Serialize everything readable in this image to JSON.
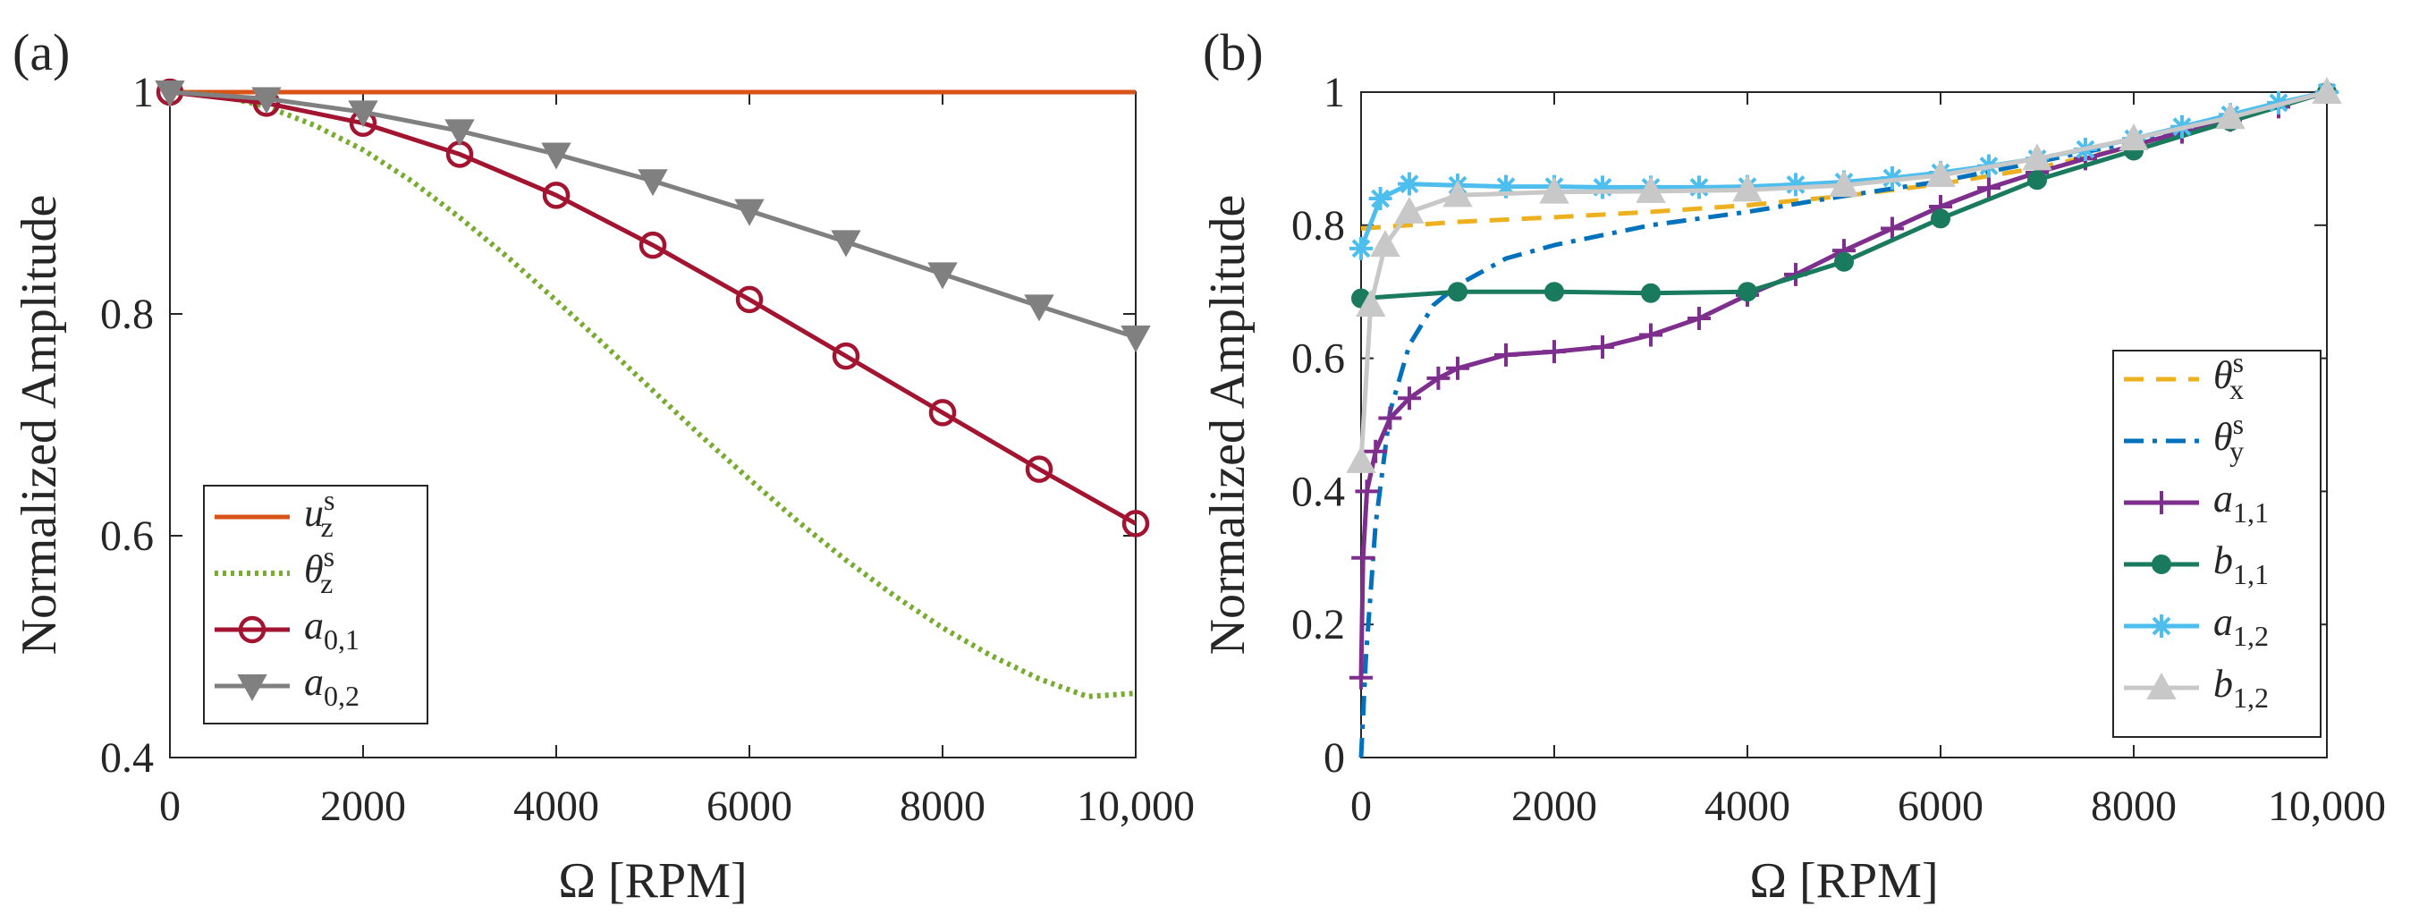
{
  "figure": {
    "panels": [
      {
        "id": "a",
        "label": "(a)"
      },
      {
        "id": "b",
        "label": "(b)"
      }
    ]
  },
  "chart_data": [
    {
      "type": "line",
      "panel_label": "(a)",
      "xlabel": "Ω [RPM]",
      "ylabel": "Normalized Amplitude",
      "xlim": [
        0,
        10000
      ],
      "ylim": [
        0.4,
        1.0
      ],
      "xticks": [
        0,
        2000,
        4000,
        6000,
        8000,
        10000
      ],
      "xtick_labels": [
        "0",
        "2000",
        "4000",
        "6000",
        "8000",
        "10,000"
      ],
      "yticks": [
        0.4,
        0.6,
        0.8,
        1.0
      ],
      "ytick_labels": [
        "0.4",
        "0.6",
        "0.8",
        "1"
      ],
      "grid": false,
      "legend_position": "bottom-left",
      "series": [
        {
          "name": "u_z^s",
          "label_main": "u",
          "label_sub": "z",
          "label_sup": "s",
          "color": "#d95319",
          "style": "solid",
          "marker": "none",
          "x": [
            0,
            10000
          ],
          "y": [
            1.0,
            1.0
          ]
        },
        {
          "name": "θ_z^s",
          "label_main": "θ",
          "label_sub": "z",
          "label_sup": "s",
          "color": "#77ac30",
          "style": "dotted",
          "marker": "none",
          "x": [
            0,
            500,
            1000,
            1500,
            2000,
            2500,
            3000,
            3500,
            4000,
            4500,
            5000,
            5500,
            6000,
            6500,
            7000,
            7500,
            8000,
            8500,
            9000,
            9500,
            10000
          ],
          "y": [
            1.0,
            0.997,
            0.987,
            0.97,
            0.948,
            0.92,
            0.887,
            0.851,
            0.812,
            0.772,
            0.731,
            0.69,
            0.651,
            0.613,
            0.578,
            0.546,
            0.517,
            0.492,
            0.471,
            0.455,
            0.458
          ]
        },
        {
          "name": "a_0,1",
          "label_main": "a",
          "label_sub": "0,1",
          "label_sup": "",
          "color": "#a2142f",
          "style": "solid",
          "marker": "circle",
          "x": [
            0,
            1000,
            2000,
            3000,
            4000,
            5000,
            6000,
            7000,
            8000,
            9000,
            10000
          ],
          "y": [
            1.0,
            0.99,
            0.972,
            0.944,
            0.907,
            0.862,
            0.813,
            0.762,
            0.711,
            0.66,
            0.611
          ]
        },
        {
          "name": "a_0,2",
          "label_main": "a",
          "label_sub": "0,2",
          "label_sup": "",
          "color": "#808080",
          "style": "solid",
          "marker": "triangle-down",
          "x": [
            0,
            1000,
            2000,
            3000,
            4000,
            5000,
            6000,
            7000,
            8000,
            9000,
            10000
          ],
          "y": [
            1.0,
            0.994,
            0.982,
            0.965,
            0.944,
            0.92,
            0.893,
            0.865,
            0.836,
            0.807,
            0.779
          ]
        }
      ]
    },
    {
      "type": "line",
      "panel_label": "(b)",
      "xlabel": "Ω [RPM]",
      "ylabel": "Normalized Amplitude",
      "xlim": [
        0,
        10000
      ],
      "ylim": [
        0,
        1.0
      ],
      "xticks": [
        0,
        2000,
        4000,
        6000,
        8000,
        10000
      ],
      "xtick_labels": [
        "0",
        "2000",
        "4000",
        "6000",
        "8000",
        "10,000"
      ],
      "yticks": [
        0,
        0.2,
        0.4,
        0.6,
        0.8,
        1.0
      ],
      "ytick_labels": [
        "0",
        "0.2",
        "0.4",
        "0.6",
        "0.8",
        "1"
      ],
      "grid": false,
      "legend_position": "bottom-right",
      "series": [
        {
          "name": "θ_x^s",
          "label_main": "θ",
          "label_sub": "x",
          "label_sup": "s",
          "color": "#edb120",
          "style": "dashed",
          "marker": "none",
          "x": [
            0,
            500,
            1000,
            2000,
            3000,
            4000,
            5000,
            6000,
            7000,
            8000,
            9000,
            10000
          ],
          "y": [
            0.795,
            0.8,
            0.805,
            0.812,
            0.82,
            0.83,
            0.844,
            0.862,
            0.886,
            0.918,
            0.957,
            1.0
          ]
        },
        {
          "name": "θ_y^s",
          "label_main": "θ",
          "label_sub": "y",
          "label_sup": "s",
          "color": "#0072bd",
          "style": "dashdot",
          "marker": "none",
          "x": [
            0,
            50,
            150,
            300,
            500,
            750,
            1000,
            1500,
            2000,
            3000,
            4000,
            5000,
            6000,
            7000,
            8000,
            9000,
            10000
          ],
          "y": [
            0.0,
            0.15,
            0.35,
            0.52,
            0.62,
            0.68,
            0.71,
            0.75,
            0.77,
            0.8,
            0.82,
            0.844,
            0.866,
            0.895,
            0.925,
            0.96,
            1.0
          ]
        },
        {
          "name": "a_1,1",
          "label_main": "a",
          "label_sub": "1,1",
          "label_sup": "",
          "color": "#7e2f8e",
          "style": "solid",
          "marker": "plus",
          "x": [
            0,
            20,
            60,
            150,
            300,
            500,
            800,
            1000,
            1500,
            2000,
            2500,
            3000,
            3500,
            4000,
            4500,
            5000,
            5500,
            6000,
            6500,
            7000,
            7500,
            8000,
            8500,
            9000,
            9500,
            10000
          ],
          "y": [
            0.12,
            0.3,
            0.4,
            0.46,
            0.51,
            0.54,
            0.57,
            0.585,
            0.605,
            0.61,
            0.617,
            0.635,
            0.66,
            0.695,
            0.726,
            0.762,
            0.795,
            0.828,
            0.856,
            0.879,
            0.9,
            0.92,
            0.94,
            0.958,
            0.978,
            1.0
          ]
        },
        {
          "name": "b_1,1",
          "label_main": "b",
          "label_sub": "1,1",
          "label_sup": "",
          "color": "#1a7a5e",
          "style": "solid",
          "marker": "dot",
          "x": [
            0,
            1000,
            2000,
            3000,
            4000,
            5000,
            6000,
            7000,
            8000,
            9000,
            10000
          ],
          "y": [
            0.69,
            0.7,
            0.7,
            0.698,
            0.7,
            0.745,
            0.81,
            0.868,
            0.912,
            0.956,
            1.0
          ]
        },
        {
          "name": "a_1,2",
          "label_main": "a",
          "label_sub": "1,2",
          "label_sup": "",
          "color": "#4dbeee",
          "style": "solid",
          "marker": "star",
          "x": [
            0,
            200,
            500,
            1000,
            1500,
            2000,
            2500,
            3000,
            3500,
            4000,
            4500,
            5000,
            5500,
            6000,
            6500,
            7000,
            7500,
            8000,
            8500,
            9000,
            9500,
            10000
          ],
          "y": [
            0.765,
            0.84,
            0.862,
            0.86,
            0.858,
            0.858,
            0.857,
            0.857,
            0.857,
            0.858,
            0.861,
            0.865,
            0.871,
            0.879,
            0.889,
            0.9,
            0.914,
            0.93,
            0.948,
            0.966,
            0.984,
            1.0
          ]
        },
        {
          "name": "b_1,2",
          "label_main": "b",
          "label_sub": "1,2",
          "label_sup": "",
          "color": "#c8c8c8",
          "style": "solid",
          "marker": "triangle-up",
          "x": [
            0,
            100,
            250,
            500,
            1000,
            2000,
            3000,
            4000,
            5000,
            6000,
            7000,
            8000,
            9000,
            10000
          ],
          "y": [
            0.445,
            0.68,
            0.77,
            0.82,
            0.845,
            0.85,
            0.851,
            0.853,
            0.86,
            0.875,
            0.9,
            0.93,
            0.962,
            1.0
          ]
        }
      ]
    }
  ]
}
